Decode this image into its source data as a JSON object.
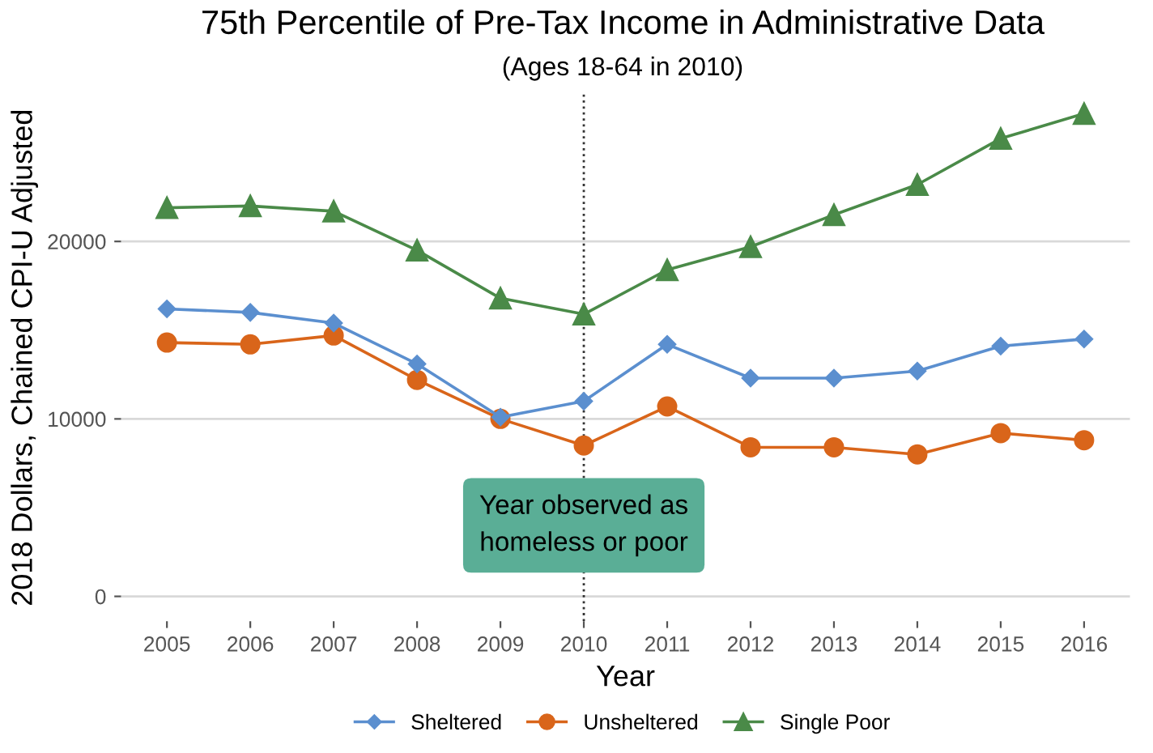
{
  "chart_data": {
    "type": "line",
    "title": "75th Percentile of Pre-Tax Income in Administrative Data",
    "subtitle": "(Ages 18-64 in 2010)",
    "xlabel": "Year",
    "ylabel": "2018 Dollars, Chained CPI-U Adjusted",
    "x": [
      2005,
      2006,
      2007,
      2008,
      2009,
      2010,
      2011,
      2012,
      2013,
      2014,
      2015,
      2016
    ],
    "series": [
      {
        "name": "Sheltered",
        "color": "#5b8fcf",
        "marker": "diamond",
        "values": [
          16200,
          16000,
          15400,
          13100,
          10100,
          11000,
          14200,
          12300,
          12300,
          12700,
          14100,
          14500
        ]
      },
      {
        "name": "Unsheltered",
        "color": "#d9651a",
        "marker": "circle",
        "values": [
          14300,
          14200,
          14700,
          12200,
          10000,
          8500,
          10700,
          8400,
          8400,
          8000,
          9200,
          8800
        ]
      },
      {
        "name": "Single Poor",
        "color": "#4a8a48",
        "marker": "triangle",
        "values": [
          21900,
          22000,
          21700,
          19500,
          16800,
          15900,
          18400,
          19700,
          21500,
          23200,
          25800,
          27200
        ]
      }
    ],
    "xlim": [
      2004.45,
      2016.55
    ],
    "xticks": [
      2005,
      2006,
      2007,
      2008,
      2009,
      2010,
      2011,
      2012,
      2013,
      2014,
      2015,
      2016
    ],
    "ylim": [
      -1400,
      28300
    ],
    "yticks": [
      0,
      10000,
      20000
    ],
    "ref_lines": [
      {
        "axis": "x",
        "value": 2010,
        "color": "#333333",
        "line_style": "dotted"
      }
    ],
    "annotations": [
      {
        "text": "Year observed as\nhomeless or poor",
        "x": 2010,
        "y": 4000
      }
    ],
    "grid": "y",
    "legend": "bottom",
    "line_style": "solid"
  }
}
